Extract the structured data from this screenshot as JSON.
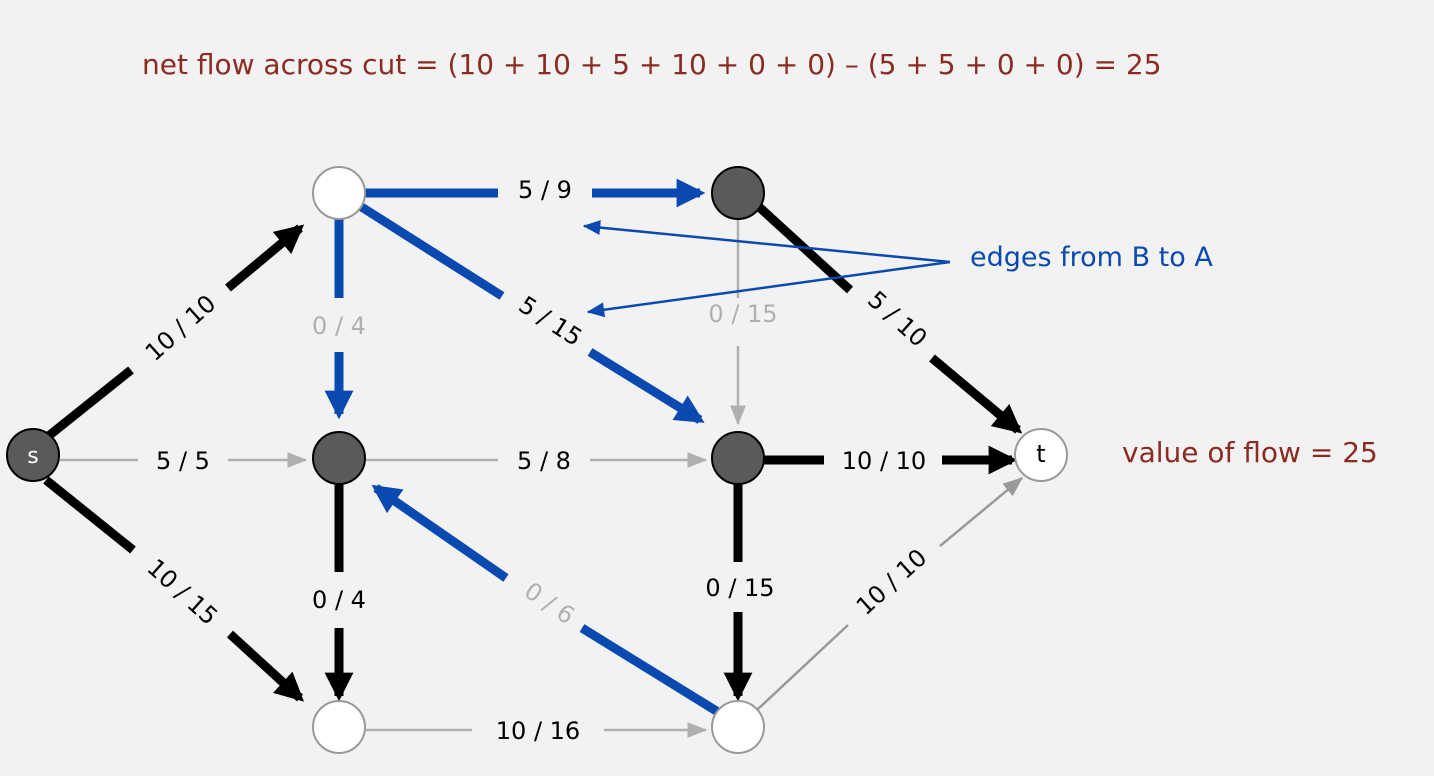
{
  "header": {
    "formula": "net flow across cut  =  (10 + 10  + 5 + 10 + 0 + 0) – (5 + 5 + 0 + 0)  =  25"
  },
  "annotations": {
    "edges_b_to_a": "edges from B to A",
    "value_of_flow": "value of flow  =  25"
  },
  "nodes": {
    "s": "s",
    "t": "t"
  },
  "edges": {
    "s_a": "10 / 10",
    "s_b": "5 / 5",
    "s_c": "10 / 15",
    "a_d": "5 / 9",
    "a_b": "0 / 4",
    "a_e": "5 / 15",
    "d_e": "0 / 15",
    "d_t": "5 / 10",
    "b_e": "5 / 8",
    "b_c": "0 / 4",
    "e_t": "10 / 10",
    "e_f": "0 / 15",
    "f_b": "0 / 6",
    "c_f": "10 / 16",
    "f_t": "10 / 10"
  },
  "colors": {
    "background": "#f2f2f2",
    "flow_black": "#000000",
    "cut_blue": "#0a4ab0",
    "empty_gray": "#b0b0b0",
    "node_dark": "#5a5a5a",
    "node_light": "#ffffff",
    "text_red": "#8b2b22"
  }
}
